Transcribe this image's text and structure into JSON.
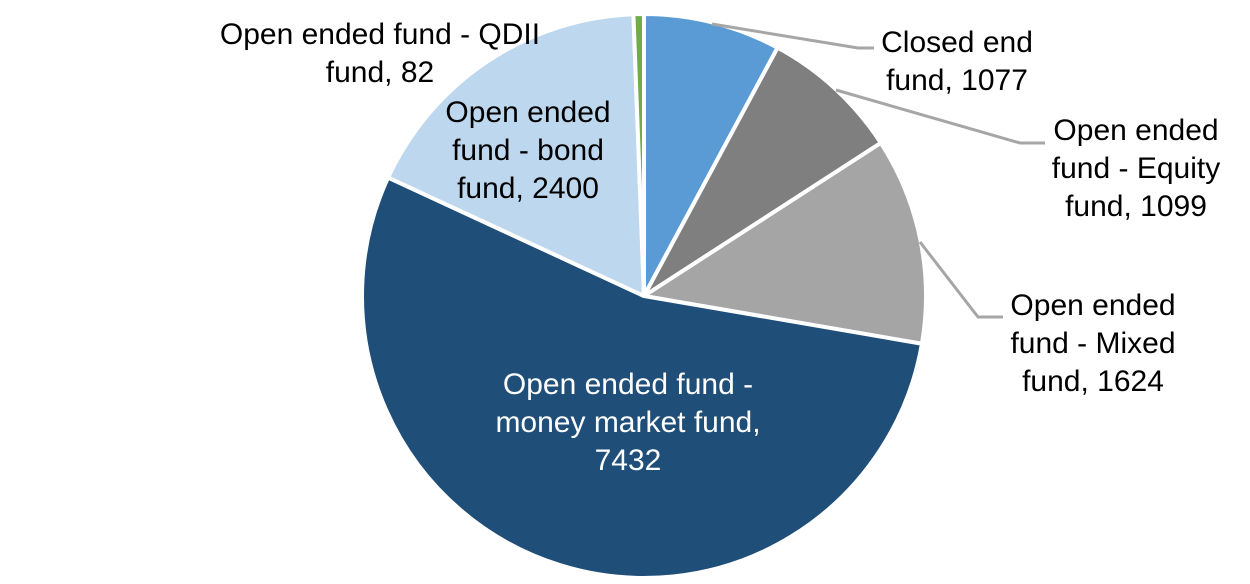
{
  "chart_data": {
    "type": "pie",
    "title": "",
    "legend": "none",
    "start_angle_deg": 0,
    "direction": "clockwise",
    "total": 13714,
    "categories": [
      "Closed end fund",
      "Open ended fund - Equity fund",
      "Open ended fund - Mixed fund",
      "Open ended fund - money market fund",
      "Open ended fund - bond fund",
      "Open ended fund - QDII fund"
    ],
    "values": [
      1077,
      1099,
      1624,
      7432,
      2400,
      82
    ],
    "colors": [
      "#5B9BD5",
      "#7F7F7F",
      "#A5A5A5",
      "#1F4E79",
      "#BDD7EE",
      "#70AD47"
    ],
    "slice_keys": [
      "closed-end-fund",
      "equity-fund",
      "mixed-fund",
      "money-market-fund",
      "bond-fund",
      "qdii-fund"
    ],
    "data_label_format": "category name, value"
  },
  "labels": {
    "closed_end": {
      "line1": "Closed end",
      "line2": "fund, 1077"
    },
    "equity": {
      "line1": "Open ended",
      "line2": "fund - Equity",
      "line3": "fund, 1099"
    },
    "mixed": {
      "line1": "Open ended",
      "line2": "fund - Mixed",
      "line3": "fund, 1624"
    },
    "money_market": {
      "line1": "Open ended fund -",
      "line2": "money market fund,",
      "line3": "7432"
    },
    "bond": {
      "line1": "Open ended",
      "line2": "fund - bond",
      "line3": "fund, 2400"
    },
    "qdii": {
      "line1": "Open ended fund - QDII",
      "line2": "fund, 82"
    }
  },
  "style": {
    "background": "#FFFFFF",
    "label_text_color": "#000000",
    "money_market_label_color": "#FFFFFF",
    "leader_line_color": "#A6A6A6",
    "slice_border_color": "#FFFFFF"
  }
}
